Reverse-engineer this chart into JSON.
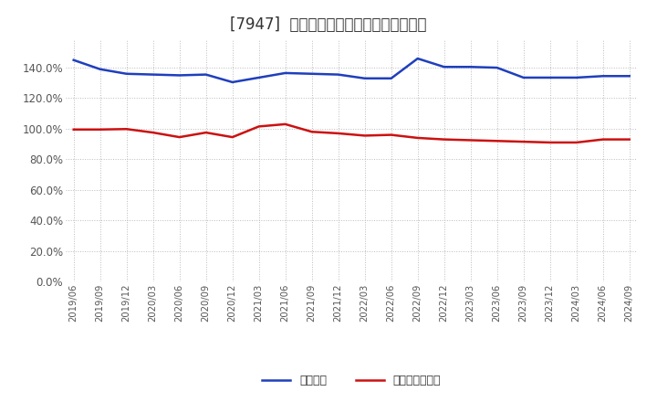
{
  "title": "[7947]  固定比率、固定長期適合率の推移",
  "x_labels": [
    "2019/06",
    "2019/09",
    "2019/12",
    "2020/03",
    "2020/06",
    "2020/09",
    "2020/12",
    "2021/03",
    "2021/06",
    "2021/09",
    "2021/12",
    "2022/03",
    "2022/06",
    "2022/09",
    "2022/12",
    "2023/03",
    "2023/06",
    "2023/09",
    "2023/12",
    "2024/03",
    "2024/06",
    "2024/09"
  ],
  "fixed_ratio": [
    145.0,
    139.0,
    136.0,
    135.5,
    135.0,
    135.5,
    130.5,
    133.5,
    136.5,
    136.0,
    135.5,
    133.0,
    133.0,
    146.0,
    140.5,
    140.5,
    140.0,
    133.5,
    133.5,
    133.5,
    134.5,
    134.5
  ],
  "fixed_longterm_ratio": [
    99.5,
    99.5,
    99.8,
    97.5,
    94.5,
    97.5,
    94.5,
    101.5,
    103.0,
    98.0,
    97.0,
    95.5,
    96.0,
    94.0,
    93.0,
    92.5,
    92.0,
    91.5,
    91.0,
    91.0,
    93.0,
    93.0
  ],
  "line1_color": "#1f3fbd",
  "line2_color": "#cc1111",
  "legend1": "固定比率",
  "legend2": "固定長期適合率",
  "ylim_min": 0,
  "ylim_max": 150,
  "yticks": [
    0,
    20,
    40,
    60,
    80,
    100,
    120,
    140
  ],
  "bg_color": "#ffffff",
  "grid_color": "#aaaaaa",
  "title_fontsize": 12
}
